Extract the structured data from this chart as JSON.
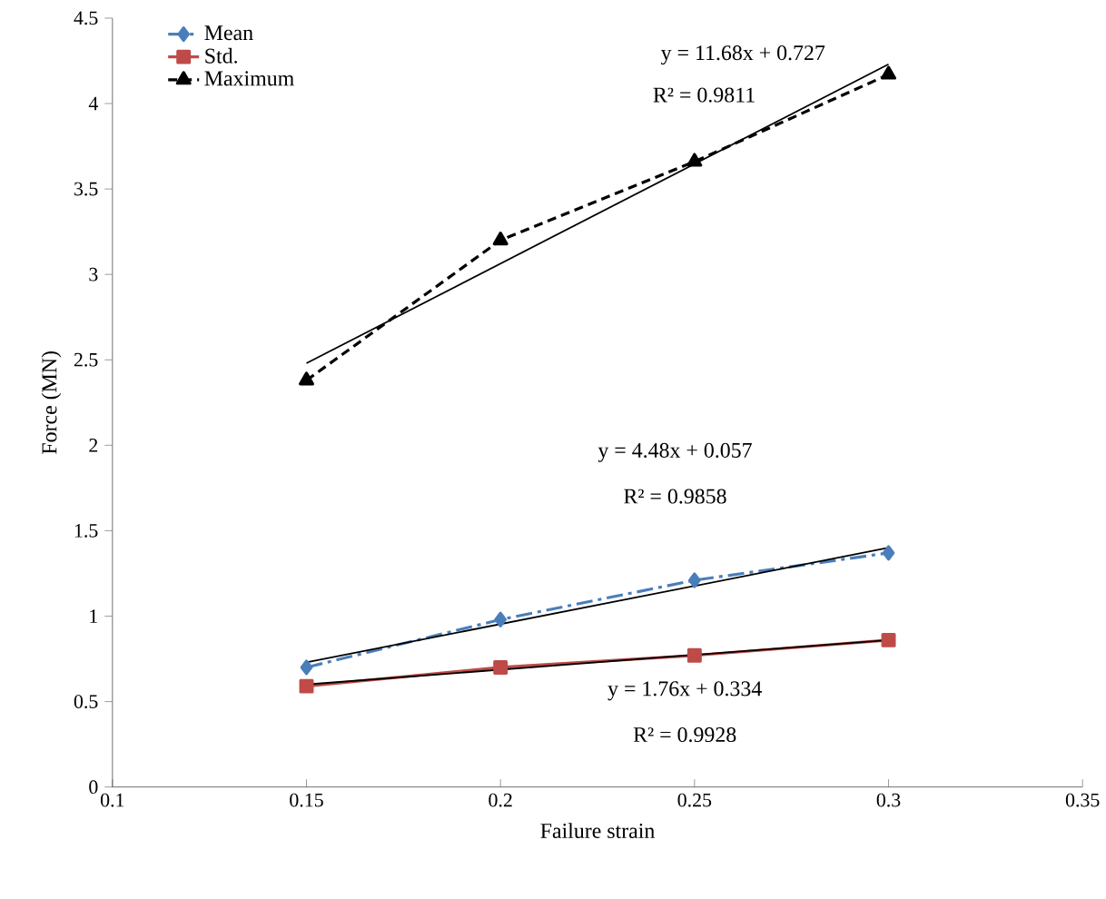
{
  "chart_data": {
    "type": "line",
    "xlabel": "Failure strain",
    "ylabel": "Force (MN)",
    "x": [
      0.15,
      0.2,
      0.25,
      0.3
    ],
    "series": [
      {
        "name": "Mean",
        "color": "#4a7ebb",
        "values": [
          0.7,
          0.98,
          1.21,
          1.37
        ],
        "marker": "diamond",
        "line_style": "dashdot"
      },
      {
        "name": "Std.",
        "color": "#be4b48",
        "values": [
          0.59,
          0.7,
          0.77,
          0.86
        ],
        "marker": "square",
        "line_style": "solid"
      },
      {
        "name": "Maximum",
        "color": "#000000",
        "values": [
          2.38,
          3.2,
          3.66,
          4.17
        ],
        "marker": "triangle",
        "line_style": "dashed"
      },
      {
        "type": "line",
        "color": "#000000",
        "values": [
          0.73,
          null,
          null,
          1.4
        ],
        "marker": "none",
        "line_style": "solid"
      },
      {
        "type": "line",
        "color": "#000000",
        "values": [
          0.6,
          null,
          null,
          0.86
        ],
        "marker": "none",
        "line_style": "solid"
      },
      {
        "type": "line",
        "color": "#000000",
        "values": [
          2.48,
          null,
          null,
          4.23
        ],
        "marker": "none",
        "line_style": "solid"
      }
    ],
    "xlim": [
      0.1,
      0.35
    ],
    "xticks": [
      0.1,
      0.15,
      0.2,
      0.25,
      0.3,
      0.35
    ],
    "ylim": [
      0,
      4.5
    ],
    "yticks": [
      0,
      0.5,
      1,
      1.5,
      2,
      2.5,
      3,
      3.5,
      4,
      4.5
    ],
    "annotations": [
      "y = 11.68x + 0.727",
      "R² = 0.9811",
      "y = 4.48x + 0.057",
      "R² = 0.9858",
      "y = 1.76x + 0.334",
      "R² = 0.9928"
    ],
    "legend": "top left",
    "grid": false
  }
}
